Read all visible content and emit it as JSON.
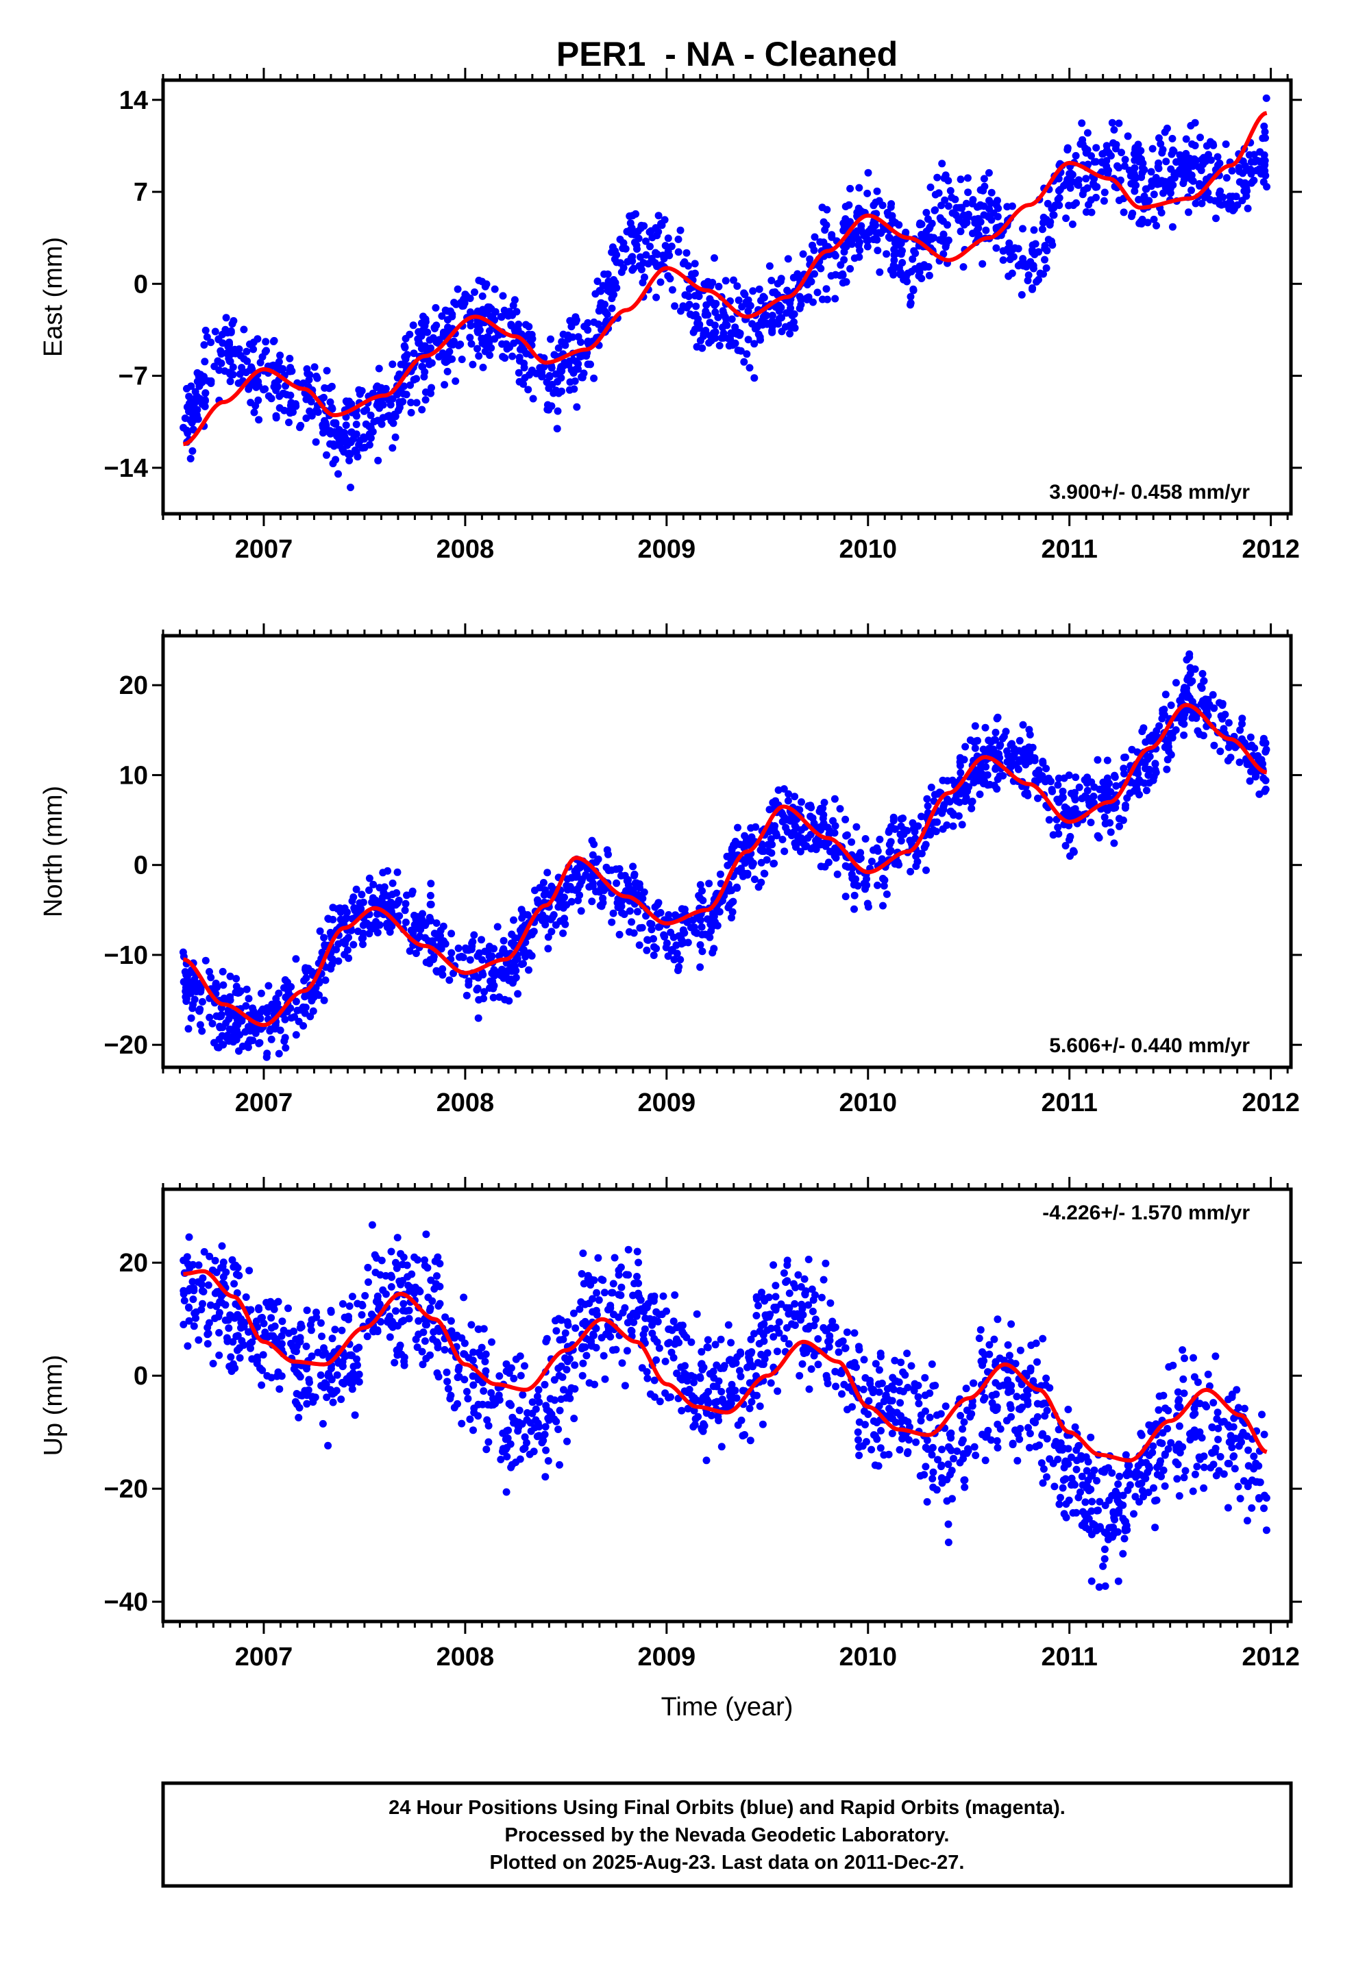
{
  "title": "PER1  - NA - Cleaned",
  "xlabel": "Time (year)",
  "footer": [
    "24 Hour Positions Using Final Orbits (blue) and Rapid Orbits (magenta).",
    "Processed by the Nevada Geodetic Laboratory.",
    "Plotted on 2025-Aug-23. Last data on 2011-Dec-27."
  ],
  "colors": {
    "data": "#0000ff",
    "model": "#ff0000",
    "frame": "#000000"
  },
  "chart_data": [
    {
      "type": "scatter",
      "ylabel": "East (mm)",
      "rate_text": "3.900+/- 0.458 mm/yr",
      "rate_position": "bottom-right",
      "xlim": [
        2006.5,
        2012.1
      ],
      "ylim": [
        -17.5,
        15.5
      ],
      "xticks": [
        2007,
        2008,
        2009,
        2010,
        2011,
        2012
      ],
      "yticks": [
        -14,
        -7,
        0,
        7,
        14
      ],
      "ytick_labels": [
        "−14",
        "−7",
        "0",
        "7",
        "14"
      ],
      "series": [
        {
          "type": "scatter",
          "x": [
            2006.6,
            2006.8,
            2007.0,
            2007.2,
            2007.4,
            2007.6,
            2007.8,
            2008.0,
            2008.2,
            2008.4,
            2008.6,
            2008.8,
            2009.0,
            2009.2,
            2009.4,
            2009.6,
            2009.8,
            2010.0,
            2010.2,
            2010.4,
            2010.6,
            2010.8,
            2011.0,
            2011.2,
            2011.4,
            2011.6,
            2011.8,
            2011.98
          ],
          "y": [
            -10.5,
            -5.0,
            -7.0,
            -8.5,
            -12.0,
            -9.0,
            -5.5,
            -3.0,
            -3.5,
            -7.0,
            -5.0,
            2.0,
            2.5,
            -2.0,
            -3.0,
            -1.5,
            2.0,
            5.0,
            2.0,
            5.5,
            5.0,
            1.0,
            8.0,
            9.0,
            7.5,
            9.0,
            7.5,
            10.0
          ]
        },
        {
          "type": "line",
          "x": [
            2006.6,
            2006.8,
            2007.0,
            2007.2,
            2007.35,
            2007.6,
            2007.8,
            2008.05,
            2008.25,
            2008.4,
            2008.6,
            2008.8,
            2009.0,
            2009.2,
            2009.4,
            2009.6,
            2009.8,
            2010.0,
            2010.2,
            2010.4,
            2010.6,
            2010.8,
            2011.0,
            2011.2,
            2011.35,
            2011.6,
            2011.8,
            2011.98
          ],
          "y": [
            -12.2,
            -9.0,
            -6.5,
            -8.0,
            -10.0,
            -8.5,
            -5.5,
            -2.5,
            -4.0,
            -6.0,
            -5.0,
            -2.0,
            1.2,
            -0.5,
            -2.5,
            -1.0,
            2.5,
            5.2,
            3.5,
            1.8,
            3.5,
            6.0,
            9.2,
            8.0,
            5.8,
            6.5,
            9.0,
            13.0
          ]
        }
      ]
    },
    {
      "type": "scatter",
      "ylabel": "North (mm)",
      "rate_text": "5.606+/- 0.440 mm/yr",
      "rate_position": "bottom-right",
      "xlim": [
        2006.5,
        2012.1
      ],
      "ylim": [
        -22.5,
        25.5
      ],
      "xticks": [
        2007,
        2008,
        2009,
        2010,
        2011,
        2012
      ],
      "yticks": [
        -20,
        -10,
        0,
        10,
        20
      ],
      "ytick_labels": [
        "−20",
        "−10",
        "0",
        "10",
        "20"
      ],
      "series": [
        {
          "type": "scatter",
          "x": [
            2006.6,
            2006.8,
            2007.0,
            2007.2,
            2007.4,
            2007.6,
            2007.8,
            2008.0,
            2008.2,
            2008.4,
            2008.6,
            2008.8,
            2009.0,
            2009.2,
            2009.4,
            2009.6,
            2009.8,
            2010.0,
            2010.2,
            2010.4,
            2010.6,
            2010.8,
            2011.0,
            2011.2,
            2011.4,
            2011.6,
            2011.8,
            2011.98
          ],
          "y": [
            -14.0,
            -16.5,
            -18.0,
            -14.0,
            -7.0,
            -4.5,
            -7.0,
            -12.0,
            -11.0,
            -5.0,
            -1.0,
            -4.0,
            -8.0,
            -6.0,
            0.0,
            5.0,
            3.0,
            -1.0,
            2.0,
            7.0,
            12.0,
            11.0,
            6.0,
            7.0,
            12.0,
            19.0,
            14.0,
            11.0
          ]
        },
        {
          "type": "line",
          "x": [
            2006.6,
            2006.8,
            2007.0,
            2007.2,
            2007.4,
            2007.55,
            2007.8,
            2008.0,
            2008.2,
            2008.4,
            2008.55,
            2008.8,
            2009.0,
            2009.2,
            2009.4,
            2009.58,
            2009.8,
            2010.0,
            2010.2,
            2010.4,
            2010.58,
            2010.8,
            2011.0,
            2011.2,
            2011.4,
            2011.58,
            2011.8,
            2011.98
          ],
          "y": [
            -10.5,
            -15.5,
            -17.8,
            -14.0,
            -7.0,
            -4.8,
            -9.0,
            -12.0,
            -10.5,
            -4.5,
            0.8,
            -3.5,
            -6.5,
            -5.0,
            1.5,
            6.5,
            3.0,
            -0.8,
            1.5,
            8.0,
            12.0,
            9.0,
            4.8,
            7.0,
            13.0,
            17.8,
            14.0,
            10.3
          ]
        }
      ]
    },
    {
      "type": "scatter",
      "ylabel": "Up (mm)",
      "rate_text": "-4.226+/- 1.570 mm/yr",
      "rate_position": "top-right",
      "xlim": [
        2006.5,
        2012.1
      ],
      "ylim": [
        -43.5,
        33.0
      ],
      "xticks": [
        2007,
        2008,
        2009,
        2010,
        2011,
        2012
      ],
      "yticks": [
        -40,
        -20,
        0,
        20
      ],
      "ytick_labels": [
        "−40",
        "−20",
        "0",
        "20"
      ],
      "series": [
        {
          "type": "scatter",
          "x": [
            2006.6,
            2006.8,
            2007.0,
            2007.2,
            2007.4,
            2007.6,
            2007.8,
            2008.0,
            2008.2,
            2008.4,
            2008.6,
            2008.8,
            2009.0,
            2009.2,
            2009.4,
            2009.6,
            2009.8,
            2010.0,
            2010.2,
            2010.4,
            2010.6,
            2010.8,
            2011.0,
            2011.2,
            2011.4,
            2011.6,
            2011.8,
            2011.98
          ],
          "y": [
            16.0,
            12.0,
            6.0,
            1.0,
            2.0,
            15.0,
            12.0,
            2.0,
            -8.0,
            -7.0,
            10.0,
            12.0,
            6.0,
            -4.0,
            0.0,
            12.0,
            8.0,
            -5.0,
            -6.0,
            -15.0,
            -2.0,
            -5.0,
            -18.0,
            -25.0,
            -15.0,
            -8.0,
            -10.0,
            -18.0
          ]
        },
        {
          "type": "line",
          "x": [
            2006.6,
            2006.7,
            2006.85,
            2007.0,
            2007.15,
            2007.3,
            2007.5,
            2007.68,
            2007.85,
            2008.0,
            2008.15,
            2008.3,
            2008.5,
            2008.68,
            2008.85,
            2009.0,
            2009.15,
            2009.3,
            2009.5,
            2009.68,
            2009.85,
            2010.0,
            2010.15,
            2010.3,
            2010.5,
            2010.68,
            2010.85,
            2011.0,
            2011.15,
            2011.3,
            2011.5,
            2011.68,
            2011.85,
            2011.98
          ],
          "y": [
            18.0,
            18.5,
            14.0,
            6.0,
            2.5,
            2.0,
            8.5,
            14.5,
            10.0,
            2.0,
            -1.5,
            -2.5,
            4.5,
            10.0,
            6.0,
            -1.5,
            -5.5,
            -6.5,
            0.0,
            6.0,
            2.5,
            -5.5,
            -9.5,
            -10.5,
            -4.0,
            2.0,
            -2.5,
            -10.0,
            -14.0,
            -15.0,
            -8.0,
            -2.5,
            -7.0,
            -13.5
          ]
        }
      ]
    }
  ]
}
